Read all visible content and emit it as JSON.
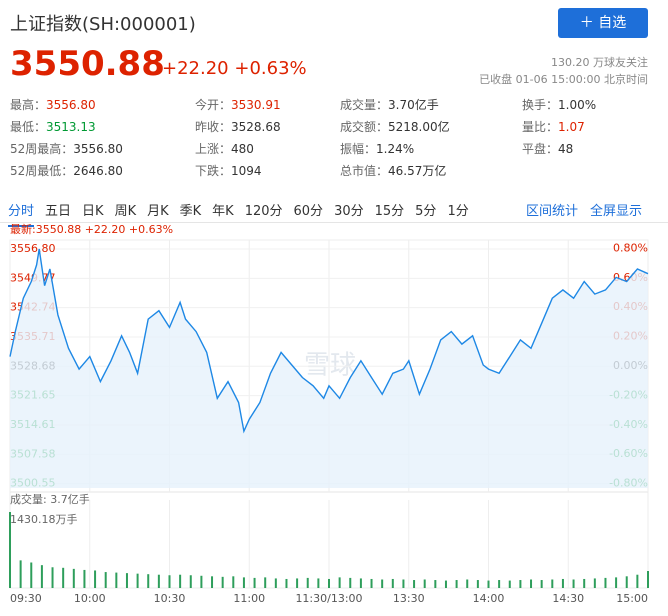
{
  "header": {
    "title": "上证指数(SH:000001)",
    "button": "自选",
    "price": "3550.88",
    "change": "+22.20",
    "change_pct": "+0.63%",
    "followers": "130.20 万球友关注",
    "status": "已收盘 01-06 15:00:00 北京时间"
  },
  "stats": [
    [
      {
        "label": "最高：",
        "value": "3556.80",
        "color": "#dd2200"
      },
      {
        "label": "今开：",
        "value": "3530.91",
        "color": "#dd2200"
      },
      {
        "label": "成交量：",
        "value": "3.70亿手",
        "color": "#333333"
      },
      {
        "label": "换手：",
        "value": "1.00%",
        "color": "#333333"
      }
    ],
    [
      {
        "label": "最低：",
        "value": "3513.13",
        "color": "#009933"
      },
      {
        "label": "昨收：",
        "value": "3528.68",
        "color": "#333333"
      },
      {
        "label": "成交额：",
        "value": "5218.00亿",
        "color": "#333333"
      },
      {
        "label": "量比：",
        "value": "1.07",
        "color": "#dd2200"
      }
    ],
    [
      {
        "label": "52周最高：",
        "value": "3556.80",
        "color": "#333333"
      },
      {
        "label": "上涨：",
        "value": "480",
        "color": "#333333"
      },
      {
        "label": "振幅：",
        "value": "1.24%",
        "color": "#333333"
      },
      {
        "label": "平盘：",
        "value": "48",
        "color": "#333333"
      }
    ],
    [
      {
        "label": "52周最低：",
        "value": "2646.80",
        "color": "#333333"
      },
      {
        "label": "下跌：",
        "value": "1094",
        "color": "#333333"
      },
      {
        "label": "总市值：",
        "value": "46.57万亿",
        "color": "#333333"
      }
    ]
  ],
  "tabs": [
    "分时",
    "五日",
    "日K",
    "周K",
    "月K",
    "季K",
    "年K",
    "120分",
    "60分",
    "30分",
    "15分",
    "5分",
    "1分"
  ],
  "tab_active": 0,
  "tab_links": [
    "区间统计",
    "全屏显示"
  ],
  "chart_data": {
    "type": "line",
    "latest": "最新:3550.88 +22.20 +0.63%",
    "watermark": "雪球",
    "xlim": [
      0,
      240
    ],
    "xticks": [
      {
        "value": 0,
        "label": "09:30"
      },
      {
        "value": 30,
        "label": "10:00"
      },
      {
        "value": 60,
        "label": "10:30"
      },
      {
        "value": 90,
        "label": "11:00"
      },
      {
        "value": 120,
        "label": "11:30/13:00"
      },
      {
        "value": 150,
        "label": "13:30"
      },
      {
        "value": 180,
        "label": "14:00"
      },
      {
        "value": 210,
        "label": "14:30"
      },
      {
        "value": 240,
        "label": "15:00"
      }
    ],
    "ylim": [
      3499.5,
      3558
    ],
    "yticks": [
      {
        "value": 3556.8,
        "label": "3556.80"
      },
      {
        "value": 3549.77,
        "label": "3549.77"
      },
      {
        "value": 3542.74,
        "label": "3542.74"
      },
      {
        "value": 3535.71,
        "label": "3535.71"
      },
      {
        "value": 3528.68,
        "label": "3528.68"
      },
      {
        "value": 3521.65,
        "label": "3521.65"
      },
      {
        "value": 3514.61,
        "label": "3514.61"
      },
      {
        "value": 3507.58,
        "label": "3507.58"
      },
      {
        "value": 3500.55,
        "label": "3500.55"
      }
    ],
    "y2lim": [
      -0.83,
      0.83
    ],
    "y2ticks": [
      {
        "value": 0.8,
        "label": "0.80%"
      },
      {
        "value": 0.6,
        "label": "0.60%"
      },
      {
        "value": 0.4,
        "label": "0.40%"
      },
      {
        "value": 0.2,
        "label": "0.20%"
      },
      {
        "value": 0,
        "label": "0.00%"
      },
      {
        "value": -0.2,
        "label": "-0.20%"
      },
      {
        "value": -0.4,
        "label": "-0.40%"
      },
      {
        "value": -0.6,
        "label": "-0.60%"
      },
      {
        "value": -0.8,
        "label": "-0.80%"
      }
    ],
    "grid": true,
    "price": {
      "color": "#1e88e5",
      "x": [
        0,
        2,
        5,
        8,
        10,
        11,
        13,
        15,
        18,
        22,
        26,
        30,
        34,
        38,
        42,
        45,
        48,
        52,
        56,
        60,
        64,
        66,
        70,
        74,
        78,
        82,
        86,
        88,
        90,
        94,
        98,
        102,
        106,
        110,
        114,
        118,
        120,
        124,
        128,
        132,
        136,
        140,
        144,
        148,
        150,
        154,
        158,
        162,
        166,
        170,
        174,
        178,
        180,
        184,
        188,
        192,
        196,
        200,
        204,
        208,
        212,
        216,
        220,
        224,
        228,
        232,
        236,
        240
      ],
      "values": [
        3531,
        3537,
        3545,
        3549,
        3553,
        3556.8,
        3548,
        3552,
        3541,
        3533,
        3528,
        3531,
        3525,
        3530,
        3536,
        3532,
        3527,
        3540,
        3542,
        3538,
        3544,
        3540,
        3537,
        3532,
        3521,
        3525,
        3520,
        3513.13,
        3516,
        3520,
        3527,
        3532,
        3529,
        3526,
        3524,
        3521,
        3524,
        3521,
        3526,
        3530,
        3526,
        3522,
        3527,
        3528,
        3530,
        3522,
        3528,
        3535,
        3537,
        3534,
        3536,
        3529,
        3528,
        3527,
        3531,
        3535,
        3533,
        3539,
        3545,
        3547,
        3545,
        3549,
        3546,
        3547,
        3550,
        3549,
        3552,
        3550.88
      ]
    },
    "volume": {
      "label": "成交量: 3.7亿手",
      "max_label": "1430.18万手",
      "vlim": [
        0,
        1430.18
      ],
      "color": "#2e9e5b",
      "x": [
        0,
        4,
        8,
        12,
        16,
        20,
        24,
        28,
        32,
        36,
        40,
        44,
        48,
        52,
        56,
        60,
        64,
        68,
        72,
        76,
        80,
        84,
        88,
        92,
        96,
        100,
        104,
        108,
        112,
        116,
        120,
        124,
        128,
        132,
        136,
        140,
        144,
        148,
        152,
        156,
        160,
        164,
        168,
        172,
        176,
        180,
        184,
        188,
        192,
        196,
        200,
        204,
        208,
        212,
        216,
        220,
        224,
        228,
        232,
        236,
        240
      ],
      "values": [
        1430,
        520,
        480,
        430,
        390,
        380,
        360,
        340,
        330,
        300,
        290,
        280,
        270,
        260,
        250,
        240,
        250,
        240,
        230,
        220,
        210,
        220,
        200,
        190,
        200,
        180,
        170,
        180,
        190,
        180,
        170,
        200,
        190,
        180,
        170,
        160,
        170,
        160,
        150,
        160,
        150,
        140,
        150,
        160,
        150,
        140,
        150,
        140,
        150,
        160,
        150,
        160,
        170,
        160,
        170,
        180,
        190,
        200,
        220,
        250,
        320
      ]
    }
  }
}
